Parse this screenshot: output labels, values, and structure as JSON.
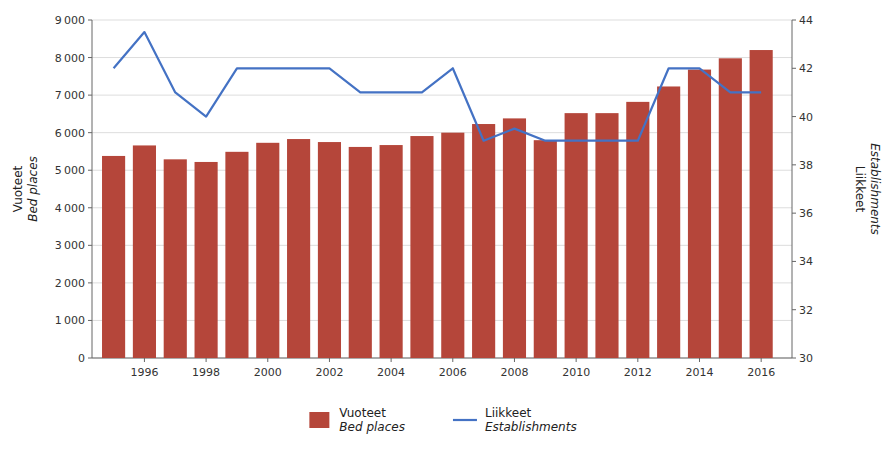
{
  "chart_data": {
    "type": "bar",
    "x": [
      1995,
      1996,
      1997,
      1998,
      1999,
      2000,
      2001,
      2002,
      2003,
      2004,
      2005,
      2006,
      2007,
      2008,
      2009,
      2010,
      2011,
      2012,
      2013,
      2014,
      2015,
      2016
    ],
    "series": [
      {
        "name": "Vuoteet\nBed places",
        "type": "bar",
        "color": "#b5463a",
        "values": [
          5380,
          5660,
          5290,
          5220,
          5490,
          5730,
          5830,
          5750,
          5620,
          5670,
          5910,
          6000,
          6230,
          6380,
          5800,
          6520,
          6520,
          6820,
          7230,
          7680,
          7980,
          8200
        ]
      },
      {
        "name": "Liikkeet\nEstablishments",
        "type": "line",
        "axis": "y2",
        "color": "#4472c4",
        "values": [
          42,
          43.5,
          41,
          40,
          42,
          42,
          42,
          42,
          41,
          41,
          41,
          42,
          39,
          39.5,
          39,
          39,
          39,
          39,
          42,
          42,
          41,
          41
        ]
      }
    ],
    "ylabel": [
      "Vuoteet",
      "Bed places"
    ],
    "y2label": [
      "Liikkeet",
      "Establishments"
    ],
    "xlim": [
      1994.3,
      2017.0
    ],
    "xticks": [
      1996,
      1998,
      2000,
      2002,
      2004,
      2006,
      2008,
      2010,
      2012,
      2014,
      2016
    ],
    "ylim": [
      0,
      9000
    ],
    "yticks": [
      0,
      {
        "value": 1000,
        "label": "1 000"
      },
      {
        "value": 2000,
        "label": "2 000"
      },
      {
        "value": 3000,
        "label": "3 000"
      },
      {
        "value": 4000,
        "label": "4 000"
      },
      {
        "value": 5000,
        "label": "5 000"
      },
      {
        "value": 6000,
        "label": "6 000"
      },
      {
        "value": 7000,
        "label": "7 000"
      },
      {
        "value": 8000,
        "label": "8 000"
      },
      {
        "value": 9000,
        "label": "9 000"
      }
    ],
    "y2lim": [
      30,
      44
    ],
    "y2ticks": [
      30,
      32,
      34,
      36,
      38,
      40,
      42,
      44
    ],
    "grid": true,
    "legend": "bottom"
  }
}
